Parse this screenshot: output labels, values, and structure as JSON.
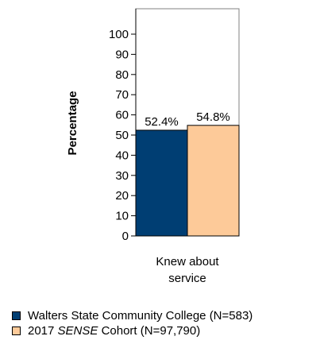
{
  "chart_data": {
    "type": "bar",
    "ylabel": "Percentage",
    "ylim": [
      0,
      100
    ],
    "yticks": [
      0,
      10,
      20,
      30,
      40,
      50,
      60,
      70,
      80,
      90,
      100
    ],
    "categories": [
      "Knew about service"
    ],
    "category_label_lines": [
      [
        "Knew about",
        "service"
      ]
    ],
    "series": [
      {
        "name": "Walters State Community College (N=583)",
        "values": [
          52.4
        ],
        "labels": [
          "52.4%"
        ],
        "color": "#003e73"
      },
      {
        "name": "2017 SENSE Cohort (N=97,790)",
        "values": [
          54.8
        ],
        "labels": [
          "54.8%"
        ],
        "color": "#fdca99"
      }
    ],
    "legend": "bottom-left",
    "grid": false
  },
  "legend": {
    "item1": "Walters State Community College (N=583)",
    "item2_prefix": "2017 ",
    "item2_italic": "SENSE",
    "item2_suffix": " Cohort (N=97,790)"
  }
}
